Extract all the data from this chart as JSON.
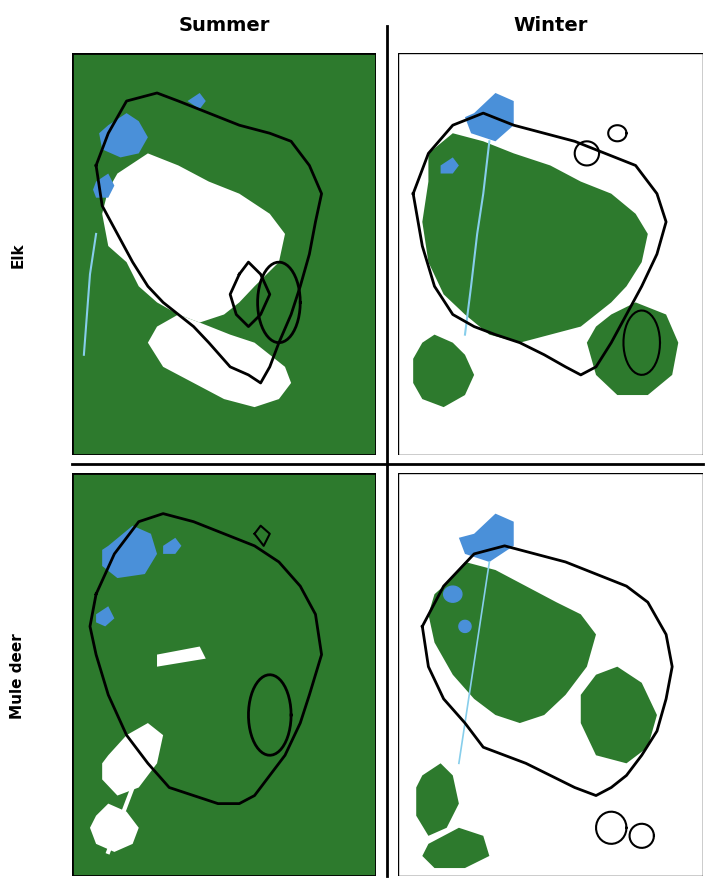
{
  "title_summer": "Summer",
  "title_winter": "Winter",
  "label_elk": "Elk",
  "label_muledeer": "Mule deer",
  "bg_green": "#2d7a2d",
  "bg_white": "#ffffff",
  "blue_water": "#4a90d9",
  "dark_green": "#1a5c1a",
  "cougar_outline": "#000000",
  "fig_width": 7.17,
  "fig_height": 8.95,
  "title_fontsize": 14,
  "label_fontsize": 11
}
